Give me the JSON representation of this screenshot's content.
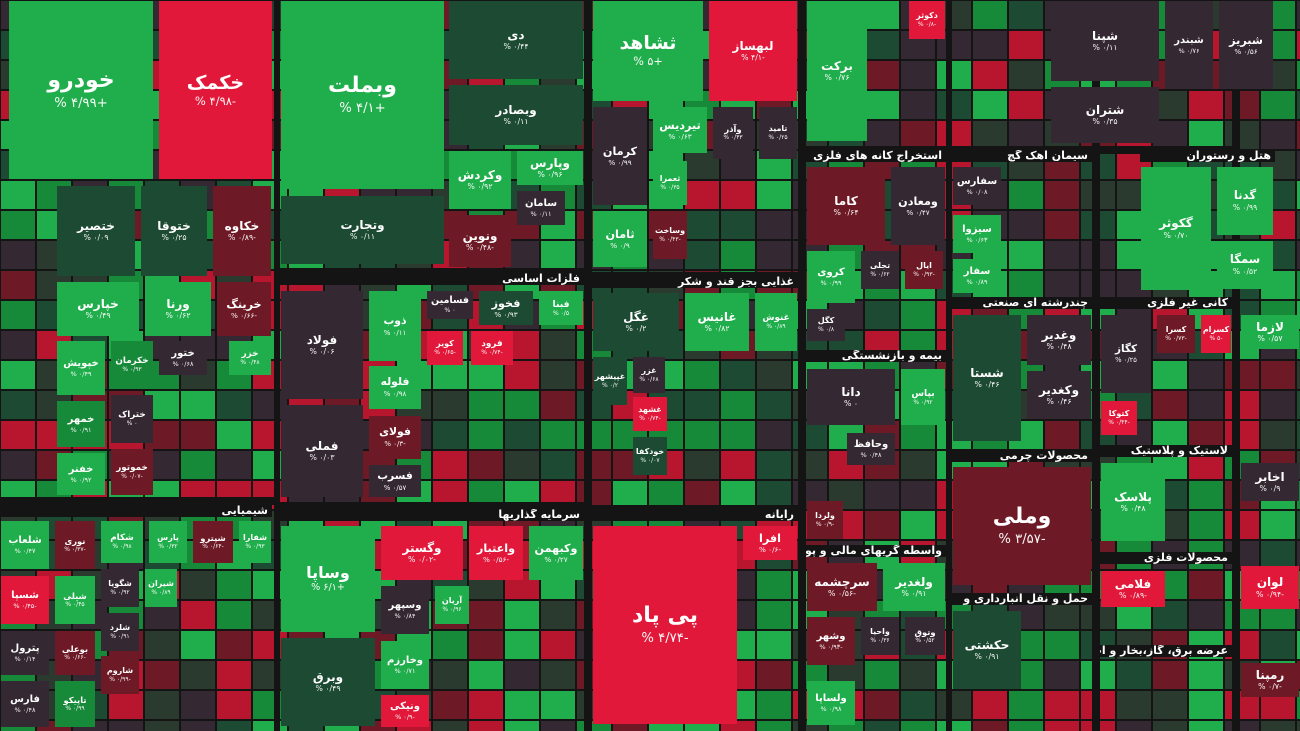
{
  "headers": [
    {
      "text": "شیمیایی"
    },
    {
      "text": "استخراج کانه های فلزی"
    },
    {
      "text": "سیمان آهک گچ"
    },
    {
      "text": "هتل و رستوران"
    },
    {
      "text": "فلزات اساسی"
    },
    {
      "text": "غذایی بجز قند و شکر"
    },
    {
      "text": "بیمه و بازنشستگی"
    },
    {
      "text": "چندرشته ای صنعتی"
    },
    {
      "text": "کانی غیر فلزی"
    },
    {
      "text": "محصولات چرمی"
    },
    {
      "text": "لاستیک و پلاستیک"
    },
    {
      "text": "سرمایه گذاریها"
    },
    {
      "text": "رایانه"
    },
    {
      "text": "واسطه گریهای مالی و پولی"
    },
    {
      "text": "حمل و نقل انبارداری و"
    },
    {
      "text": "محصولات فلزی"
    },
    {
      "text": "عرضه برق، گاز،بخار و آب گرم"
    }
  ],
  "tiles": [
    {
      "name": "خودرو",
      "change": "+۴/۹۹ %",
      "color": "#1fae4b"
    },
    {
      "name": "خکمک",
      "change": "-۴/۹۸ %",
      "color": "#e2183a"
    },
    {
      "name": "ختصیر",
      "change": "۰/۰۹ %",
      "color": "#1d4a33"
    },
    {
      "name": "ختوقا",
      "change": "۰/۲۵ %",
      "color": "#1d4a33"
    },
    {
      "name": "خکاوه",
      "change": "-۰/۸۹ %",
      "color": "#6e1a26"
    },
    {
      "name": "خپارس",
      "change": "۰/۴۹ %",
      "color": "#1fae4b"
    },
    {
      "name": "ورنا",
      "change": "۰/۶۲ %",
      "color": "#1fae4b"
    },
    {
      "name": "خرینگ",
      "change": "-۰/۶۶ %",
      "color": "#6e1a26"
    },
    {
      "name": "خپویش",
      "change": "۰/۴۹ %",
      "color": "#1fae4b"
    },
    {
      "name": "خکرمان",
      "change": "۰/۹۳ %",
      "color": "#178a3a"
    },
    {
      "name": "ختور",
      "change": "۰/۶۸ %",
      "color": "#342832"
    },
    {
      "name": "خزر",
      "change": "۰/۴۸ %",
      "color": "#1fae4b"
    },
    {
      "name": "ختراک",
      "change": "۰ %",
      "color": "#342832"
    },
    {
      "name": "خمهر",
      "change": "۰/۹۱ %",
      "color": "#178a3a"
    },
    {
      "name": "خفنر",
      "change": "۰/۹۲ %",
      "color": "#1fae4b"
    },
    {
      "name": "خموتور",
      "change": "-۰/۰۷ %",
      "color": "#6e1a26"
    },
    {
      "name": "شلعاب",
      "change": "۰/۴۷ %",
      "color": "#1fae4b"
    },
    {
      "name": "نوری",
      "change": "-۰/۳۷ %",
      "color": "#6e1a26"
    },
    {
      "name": "شکام",
      "change": "۰/۹۸ %",
      "color": "#1fae4b"
    },
    {
      "name": "پارس",
      "change": "۰/۳۲ %",
      "color": "#1fae4b"
    },
    {
      "name": "شپترو",
      "change": "-۰/۶۴ %",
      "color": "#6e1a26"
    },
    {
      "name": "شفارا",
      "change": "۰/۹۳ %",
      "color": "#1fae4b"
    },
    {
      "name": "شسپا",
      "change": "-۰/۴۵ %",
      "color": "#e2183a"
    },
    {
      "name": "شیلی",
      "change": "۰/۴۵ %",
      "color": "#1fae4b"
    },
    {
      "name": "شگویا",
      "change": "۰/۹۲ %",
      "color": "#342832"
    },
    {
      "name": "شیران",
      "change": "۰/۸۹ %",
      "color": "#1fae4b"
    },
    {
      "name": "پترول",
      "change": "۰/۱۴ %",
      "color": "#342832"
    },
    {
      "name": "بوعلی",
      "change": "-۰/۶۶ %",
      "color": "#6e1a26"
    },
    {
      "name": "شلرد",
      "change": "۰/۹۱ %",
      "color": "#342832"
    },
    {
      "name": "شاروم",
      "change": "-۰/۹۹ %",
      "color": "#6e1a26"
    },
    {
      "name": "فارس",
      "change": "۰/۴۸ %",
      "color": "#342832"
    },
    {
      "name": "تاپیکو",
      "change": "۰/۹۹ %",
      "color": "#178a3a"
    },
    {
      "name": "وبملت",
      "change": "+۴/۱ %",
      "color": "#1fae4b"
    },
    {
      "name": "وتجارت",
      "change": "۰/۱۱ %",
      "color": "#1d4a33"
    },
    {
      "name": "دی",
      "change": "۰/۴۴ %",
      "color": "#1d4a33"
    },
    {
      "name": "وبصادر",
      "change": "۰/۱۱ %",
      "color": "#1d4a33"
    },
    {
      "name": "وکردش",
      "change": "۰/۹۲ %",
      "color": "#1fae4b"
    },
    {
      "name": "وپارس",
      "change": "۰/۹۶ %",
      "color": "#1fae4b"
    },
    {
      "name": "سامان",
      "change": "۰/۱۱ %",
      "color": "#342832"
    },
    {
      "name": "ونوین",
      "change": "-۰/۴۸ %",
      "color": "#6e1a26"
    },
    {
      "name": "ثشاهد",
      "change": "+۵ %",
      "color": "#1fae4b"
    },
    {
      "name": "لبهساز",
      "change": "-۴/۱ %",
      "color": "#e2183a"
    },
    {
      "name": "کرمان",
      "change": "۰/۹۹ %",
      "color": "#342832"
    },
    {
      "name": "تیردیس",
      "change": "۰/۶۳ %",
      "color": "#1fae4b"
    },
    {
      "name": "وآذر",
      "change": "۰/۴۳ %",
      "color": "#342832"
    },
    {
      "name": "تامید",
      "change": "۰/۲۵ %",
      "color": "#342832"
    },
    {
      "name": "ثعمرا",
      "change": "۰/۳۵ %",
      "color": "#1fae4b"
    },
    {
      "name": "وساخت",
      "change": "-۰/۴۳ %",
      "color": "#6e1a26"
    },
    {
      "name": "ثامان",
      "change": "۰/۹ %",
      "color": "#1fae4b"
    },
    {
      "name": "برکت",
      "change": "۰/۷۶ %",
      "color": "#1fae4b"
    },
    {
      "name": "دکوثر",
      "change": "-۰/۸ %",
      "color": "#e2183a"
    },
    {
      "name": "شپنا",
      "change": "۰/۱۱ %",
      "color": "#342832"
    },
    {
      "name": "شبندر",
      "change": "۰/۷۶ %",
      "color": "#342832"
    },
    {
      "name": "شبریز",
      "change": "۰/۵۶ %",
      "color": "#342832"
    },
    {
      "name": "شتران",
      "change": "۰/۳۵ %",
      "color": "#342832"
    },
    {
      "name": "کاما",
      "change": "۰/۶۴ %",
      "color": "#6e1a26"
    },
    {
      "name": "ومعادن",
      "change": "۰/۴۷ %",
      "color": "#342832"
    },
    {
      "name": "کروی",
      "change": "۰/۹۹ %",
      "color": "#1fae4b"
    },
    {
      "name": "تجلی",
      "change": "۰/۶۲ %",
      "color": "#342832"
    },
    {
      "name": "ایال",
      "change": "-۰/۹۳ %",
      "color": "#6e1a26"
    },
    {
      "name": "کگل",
      "change": "۰/۸ %",
      "color": "#342832"
    },
    {
      "name": "سفارس",
      "change": "۰/۰۸ %",
      "color": "#342832"
    },
    {
      "name": "سیزوا",
      "change": "۰/۶۳ %",
      "color": "#1fae4b"
    },
    {
      "name": "سفار",
      "change": "۰/۸۹ %",
      "color": "#1fae4b"
    },
    {
      "name": "گکوثر",
      "change": "۰/۷۰ %",
      "color": "#1fae4b"
    },
    {
      "name": "گدنا",
      "change": "۰/۹۹ %",
      "color": "#1fae4b"
    },
    {
      "name": "سمگا",
      "change": "۰/۵۲ %",
      "color": "#1fae4b"
    },
    {
      "name": "فولاد",
      "change": "۰/۰۶ %",
      "color": "#342832"
    },
    {
      "name": "فملی",
      "change": "۰/۰۳ %",
      "color": "#342832"
    },
    {
      "name": "ذوب",
      "change": "۰/۱۱ %",
      "color": "#1fae4b"
    },
    {
      "name": "فسامین",
      "change": "۰ %",
      "color": "#342832"
    },
    {
      "name": "فخوز",
      "change": "۰/۹۳ %",
      "color": "#1d4a33"
    },
    {
      "name": "فبنا",
      "change": "۰/۵ %",
      "color": "#1fae4b"
    },
    {
      "name": "کویر",
      "change": "-۰/۶۵ %",
      "color": "#e2183a"
    },
    {
      "name": "فرود",
      "change": "-۰/۷۴ %",
      "color": "#e2183a"
    },
    {
      "name": "فلوله",
      "change": "۰/۹۸ %",
      "color": "#1fae4b"
    },
    {
      "name": "فولای",
      "change": "-۰/۳ %",
      "color": "#6e1a26"
    },
    {
      "name": "فسرب",
      "change": "۰/۵۷ %",
      "color": "#342832"
    },
    {
      "name": "غگل",
      "change": "۰/۲ %",
      "color": "#1d4a33"
    },
    {
      "name": "غانیس",
      "change": "۰/۸۲ %",
      "color": "#1fae4b"
    },
    {
      "name": "غنوش",
      "change": "۰/۸۹ %",
      "color": "#1fae4b"
    },
    {
      "name": "غپیشهر",
      "change": "۰/۲ %",
      "color": "#1d4a33"
    },
    {
      "name": "غزر",
      "change": "۰/۶۸ %",
      "color": "#342832"
    },
    {
      "name": "غشهد",
      "change": "-۰/۷۴ %",
      "color": "#e2183a"
    },
    {
      "name": "خودکفا",
      "change": "۰/۰۷ %",
      "color": "#1d4a33"
    },
    {
      "name": "دانا",
      "change": "۰ %",
      "color": "#342832"
    },
    {
      "name": "بپاس",
      "change": "۰/۹۲ %",
      "color": "#1fae4b"
    },
    {
      "name": "وحافظ",
      "change": "۰/۴۸ %",
      "color": "#342832"
    },
    {
      "name": "ولردا",
      "change": "-۰/۹ %",
      "color": "#6e1a26"
    },
    {
      "name": "شستا",
      "change": "۰/۴۶ %",
      "color": "#1d4a33"
    },
    {
      "name": "وغدیر",
      "change": "۰/۴۸ %",
      "color": "#342832"
    },
    {
      "name": "وکغدیر",
      "change": "۰/۴۶ %",
      "color": "#342832"
    },
    {
      "name": "کگاز",
      "change": "۰/۲۵ %",
      "color": "#342832"
    },
    {
      "name": "کسرا",
      "change": "-۰/۷۳ %",
      "color": "#6e1a26"
    },
    {
      "name": "کسرام",
      "change": "-۵ %",
      "color": "#e2183a"
    },
    {
      "name": "کتوکا",
      "change": "-۰/۴۴ %",
      "color": "#e2183a"
    },
    {
      "name": "لازما",
      "change": "۰/۵۷ %",
      "color": "#1fae4b"
    },
    {
      "name": "وملی",
      "change": "-۳/۵۷ %",
      "color": "#6e1a26"
    },
    {
      "name": "پلاسک",
      "change": "۰/۴۸ %",
      "color": "#1fae4b"
    },
    {
      "name": "اخابر",
      "change": "۰/۹ %",
      "color": "#342832"
    },
    {
      "name": "وساپا",
      "change": "+۶/۱ %",
      "color": "#1fae4b"
    },
    {
      "name": "وبرق",
      "change": "۰/۴۹ %",
      "color": "#1d4a33"
    },
    {
      "name": "وگستر",
      "change": "-۰/۰۲ %",
      "color": "#e2183a"
    },
    {
      "name": "واعتبار",
      "change": "-۰/۵۶ %",
      "color": "#e2183a"
    },
    {
      "name": "وکبهمن",
      "change": "۰/۲۷ %",
      "color": "#1fae4b"
    },
    {
      "name": "وسپهر",
      "change": "۰/۸۴ %",
      "color": "#342832"
    },
    {
      "name": "آریان",
      "change": "۰/۹۶ %",
      "color": "#1fae4b"
    },
    {
      "name": "وخارزم",
      "change": "۰/۷۱ %",
      "color": "#1fae4b"
    },
    {
      "name": "ونیکی",
      "change": "-۰/۹ %",
      "color": "#e2183a"
    },
    {
      "name": "پی پاد",
      "change": "-۴/۷۴ %",
      "color": "#e2183a"
    },
    {
      "name": "افرا",
      "change": "-۰/۶ %",
      "color": "#e2183a"
    },
    {
      "name": "سرچشمه",
      "change": "-۰/۵۶ %",
      "color": "#6e1a26"
    },
    {
      "name": "ولغدیر",
      "change": "۰/۹۱ %",
      "color": "#1fae4b"
    },
    {
      "name": "وشهر",
      "change": "-۰/۹۳ %",
      "color": "#6e1a26"
    },
    {
      "name": "واحیا",
      "change": "۰/۳۶ %",
      "color": "#342832"
    },
    {
      "name": "وتوق",
      "change": "۰/۵۲ %",
      "color": "#342832"
    },
    {
      "name": "ولساپا",
      "change": "۰/۹۸ %",
      "color": "#1fae4b"
    },
    {
      "name": "حکشتی",
      "change": "۰/۹۱ %",
      "color": "#1d4a33"
    },
    {
      "name": "فلامی",
      "change": "-۰/۸۹ %",
      "color": "#e2183a"
    },
    {
      "name": "لوان",
      "change": "-۰/۹۴ %",
      "color": "#e2183a"
    },
    {
      "name": "رمپنا",
      "change": "-۰/۷ %",
      "color": "#6e1a26"
    }
  ]
}
